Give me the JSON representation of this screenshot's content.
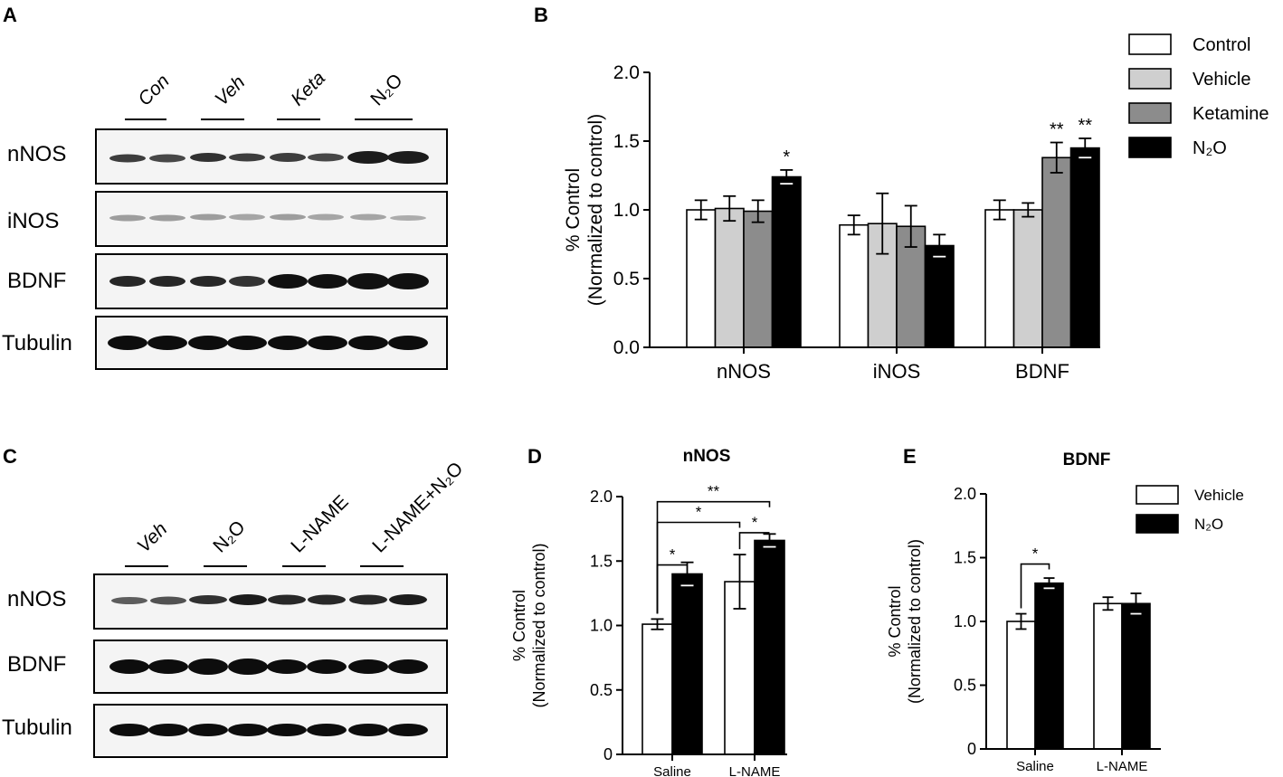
{
  "panels": {
    "a": {
      "letter": "A"
    },
    "b": {
      "letter": "B"
    },
    "c": {
      "letter": "C"
    },
    "d": {
      "letter": "D"
    },
    "e": {
      "letter": "E"
    }
  },
  "blot_a": {
    "lanes": [
      "Con",
      "Veh",
      "Keta",
      "N₂O"
    ],
    "rows": [
      "nNOS",
      "iNOS",
      "BDNF",
      "Tubulin"
    ]
  },
  "blot_c": {
    "lanes": [
      "Veh",
      "N₂O",
      "L-NAME",
      "L-NAME+N₂O"
    ],
    "rows": [
      "nNOS",
      "BDNF",
      "Tubulin"
    ]
  },
  "chart_data": [
    {
      "id": "B",
      "type": "bar",
      "title": "",
      "ylabel_lines": [
        "% Control",
        "(Normalized to control)"
      ],
      "xlabel": "",
      "categories": [
        "nNOS",
        "iNOS",
        "BDNF"
      ],
      "ylim": [
        0,
        2.0
      ],
      "yticks": [
        "0.0",
        "0.5",
        "1.0",
        "1.5",
        "2.0"
      ],
      "legend_position": "top-right",
      "series": [
        {
          "name": "Control",
          "color": "#ffffff",
          "values": [
            1.0,
            0.89,
            1.0
          ],
          "errors": [
            0.07,
            0.07,
            0.07
          ]
        },
        {
          "name": "Vehicle",
          "color": "#cfcfcf",
          "values": [
            1.01,
            0.9,
            1.0
          ],
          "errors": [
            0.09,
            0.22,
            0.05
          ]
        },
        {
          "name": "Ketamine",
          "color": "#8c8c8c",
          "values": [
            0.99,
            0.88,
            1.38
          ],
          "errors": [
            0.08,
            0.15,
            0.11
          ]
        },
        {
          "name": "N₂O",
          "color": "#000000",
          "values": [
            1.24,
            0.74,
            1.45
          ],
          "errors": [
            0.05,
            0.08,
            0.07
          ]
        }
      ],
      "significance": [
        {
          "category": "nNOS",
          "series": "N₂O",
          "label": "*"
        },
        {
          "category": "BDNF",
          "series": "Ketamine",
          "label": "**"
        },
        {
          "category": "BDNF",
          "series": "N₂O",
          "label": "**"
        }
      ]
    },
    {
      "id": "D",
      "type": "bar",
      "title": "nNOS",
      "ylabel_lines": [
        "% Control",
        "(Normalized to control)"
      ],
      "xlabel": "",
      "categories": [
        "Saline",
        "L-NAME"
      ],
      "ylim": [
        0,
        2.0
      ],
      "yticks": [
        "0",
        "0.5",
        "1.0",
        "1.5",
        "2.0"
      ],
      "series": [
        {
          "name": "Vehicle",
          "color": "#ffffff",
          "values": [
            1.01,
            1.34
          ],
          "errors": [
            0.04,
            0.21
          ]
        },
        {
          "name": "N₂O",
          "color": "#000000",
          "values": [
            1.4,
            1.66
          ],
          "errors": [
            0.09,
            0.05
          ]
        }
      ],
      "brackets": [
        {
          "from": [
            0,
            0
          ],
          "to": [
            0,
            1
          ],
          "y": 1.47,
          "label": "*"
        },
        {
          "from": [
            1,
            0
          ],
          "to": [
            1,
            1
          ],
          "y": 1.72,
          "label": "*"
        },
        {
          "from": [
            0,
            0
          ],
          "to": [
            1,
            0
          ],
          "y": 1.8,
          "label": "*"
        },
        {
          "from": [
            0,
            0
          ],
          "to": [
            1,
            1
          ],
          "y": 1.96,
          "label": "**"
        }
      ]
    },
    {
      "id": "E",
      "type": "bar",
      "title": "BDNF",
      "ylabel_lines": [
        "% Control",
        "(Normalized to control)"
      ],
      "xlabel": "",
      "categories": [
        "Saline",
        "L-NAME"
      ],
      "ylim": [
        0,
        2.0
      ],
      "yticks": [
        "0",
        "0.5",
        "1.0",
        "1.5",
        "2.0"
      ],
      "legend_position": "top-right",
      "series": [
        {
          "name": "Vehicle",
          "color": "#ffffff",
          "values": [
            1.0,
            1.14
          ],
          "errors": [
            0.06,
            0.05
          ]
        },
        {
          "name": "N₂O",
          "color": "#000000",
          "values": [
            1.3,
            1.14
          ],
          "errors": [
            0.04,
            0.08
          ]
        }
      ],
      "brackets": [
        {
          "from": [
            0,
            0
          ],
          "to": [
            0,
            1
          ],
          "y": 1.45,
          "label": "*"
        }
      ]
    }
  ]
}
